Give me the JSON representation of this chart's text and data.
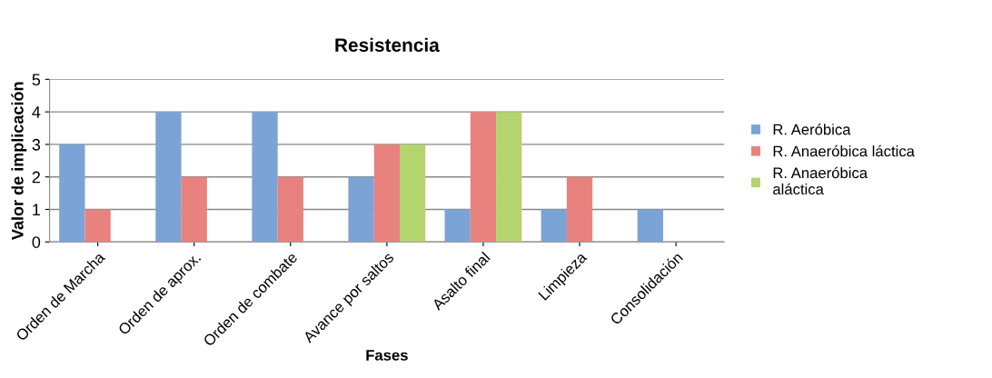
{
  "chart_data": {
    "type": "bar",
    "title": "Resistencia",
    "xlabel": "Fases",
    "ylabel": "Valor de implicación",
    "categories": [
      "Orden de Marcha",
      "Orden de aprox.",
      "Orden de combate",
      "Avance por saltos",
      "Asalto final",
      "Limpieza",
      "Consolidación"
    ],
    "series": [
      {
        "name": "R. Aeróbica",
        "color": "#7ba3d6",
        "values": [
          3,
          4,
          4,
          2,
          1,
          1,
          1
        ]
      },
      {
        "name": "R. Anaeróbica láctica",
        "color": "#e8827f",
        "values": [
          1,
          2,
          2,
          3,
          4,
          2,
          null
        ]
      },
      {
        "name": "R. Anaeróbica\naláctica",
        "color": "#b3d46e",
        "values": [
          null,
          null,
          null,
          3,
          4,
          null,
          null
        ]
      }
    ],
    "ylim": [
      0,
      5
    ],
    "yticks": [
      0,
      1,
      2,
      3,
      4,
      5
    ],
    "grid": "y",
    "legend": "right"
  }
}
